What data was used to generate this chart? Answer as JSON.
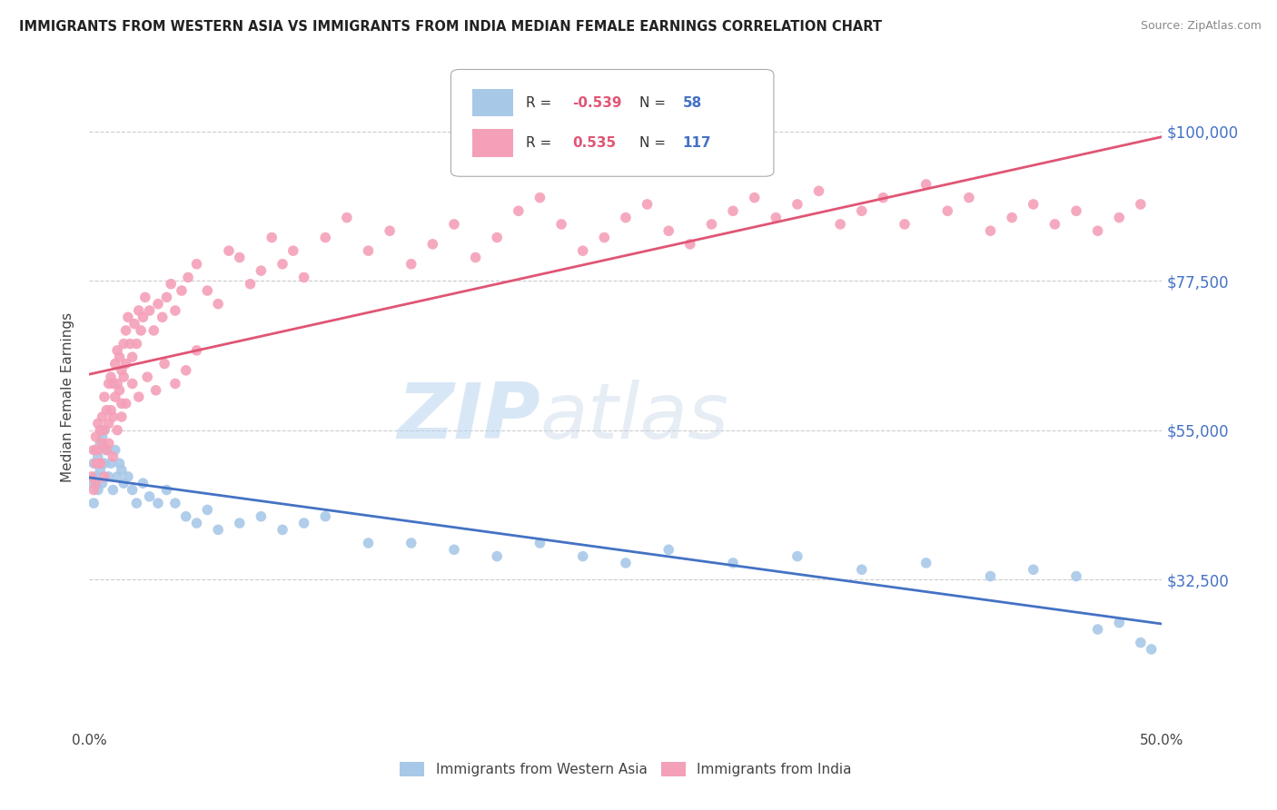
{
  "title": "IMMIGRANTS FROM WESTERN ASIA VS IMMIGRANTS FROM INDIA MEDIAN FEMALE EARNINGS CORRELATION CHART",
  "source": "Source: ZipAtlas.com",
  "ylabel": "Median Female Earnings",
  "xlim": [
    0.0,
    0.5
  ],
  "ylim": [
    10000,
    110000
  ],
  "yticks": [
    32500,
    55000,
    77500,
    100000
  ],
  "ytick_labels": [
    "$32,500",
    "$55,000",
    "$77,500",
    "$100,000"
  ],
  "xtick_labels": [
    "0.0%",
    "50.0%"
  ],
  "xtick_positions": [
    0.0,
    0.5
  ],
  "bg_color": "#ffffff",
  "grid_color": "#cccccc",
  "watermark": "ZIPatlas",
  "series_blue": {
    "name": "Immigrants from Western Asia",
    "R": -0.539,
    "N": 58,
    "dot_color": "#a8c8e8",
    "line_color": "#4472c4",
    "x": [
      0.001,
      0.002,
      0.002,
      0.003,
      0.003,
      0.004,
      0.004,
      0.005,
      0.005,
      0.006,
      0.006,
      0.007,
      0.007,
      0.008,
      0.009,
      0.01,
      0.011,
      0.012,
      0.013,
      0.014,
      0.015,
      0.016,
      0.018,
      0.02,
      0.022,
      0.025,
      0.028,
      0.032,
      0.036,
      0.04,
      0.045,
      0.05,
      0.055,
      0.06,
      0.07,
      0.08,
      0.09,
      0.1,
      0.11,
      0.13,
      0.15,
      0.17,
      0.19,
      0.21,
      0.23,
      0.25,
      0.27,
      0.3,
      0.33,
      0.36,
      0.39,
      0.42,
      0.44,
      0.46,
      0.47,
      0.48,
      0.49,
      0.495
    ],
    "y": [
      47000,
      50000,
      44000,
      52000,
      48000,
      51000,
      46000,
      53000,
      49000,
      54000,
      47000,
      55000,
      50000,
      52000,
      48000,
      50000,
      46000,
      52000,
      48000,
      50000,
      49000,
      47000,
      48000,
      46000,
      44000,
      47000,
      45000,
      44000,
      46000,
      44000,
      42000,
      41000,
      43000,
      40000,
      41000,
      42000,
      40000,
      41000,
      42000,
      38000,
      38000,
      37000,
      36000,
      38000,
      36000,
      35000,
      37000,
      35000,
      36000,
      34000,
      35000,
      33000,
      34000,
      33000,
      25000,
      26000,
      23000,
      22000
    ]
  },
  "series_pink": {
    "name": "Immigrants from India",
    "R": 0.535,
    "N": 117,
    "dot_color": "#f4a0b8",
    "line_color": "#e05575",
    "x": [
      0.001,
      0.002,
      0.002,
      0.003,
      0.003,
      0.004,
      0.004,
      0.005,
      0.005,
      0.006,
      0.006,
      0.007,
      0.007,
      0.008,
      0.008,
      0.009,
      0.009,
      0.01,
      0.01,
      0.011,
      0.011,
      0.012,
      0.012,
      0.013,
      0.013,
      0.014,
      0.014,
      0.015,
      0.015,
      0.016,
      0.016,
      0.017,
      0.017,
      0.018,
      0.019,
      0.02,
      0.021,
      0.022,
      0.023,
      0.024,
      0.025,
      0.026,
      0.028,
      0.03,
      0.032,
      0.034,
      0.036,
      0.038,
      0.04,
      0.043,
      0.046,
      0.05,
      0.055,
      0.06,
      0.065,
      0.07,
      0.075,
      0.08,
      0.085,
      0.09,
      0.095,
      0.1,
      0.11,
      0.12,
      0.13,
      0.14,
      0.15,
      0.16,
      0.17,
      0.18,
      0.19,
      0.2,
      0.21,
      0.22,
      0.23,
      0.24,
      0.25,
      0.26,
      0.27,
      0.28,
      0.29,
      0.3,
      0.31,
      0.32,
      0.33,
      0.34,
      0.35,
      0.36,
      0.37,
      0.38,
      0.39,
      0.4,
      0.41,
      0.42,
      0.43,
      0.44,
      0.45,
      0.46,
      0.47,
      0.48,
      0.49,
      0.003,
      0.005,
      0.007,
      0.009,
      0.011,
      0.013,
      0.015,
      0.017,
      0.02,
      0.023,
      0.027,
      0.031,
      0.035,
      0.04,
      0.045,
      0.05
    ],
    "y": [
      48000,
      52000,
      46000,
      54000,
      50000,
      56000,
      52000,
      55000,
      50000,
      57000,
      53000,
      60000,
      55000,
      58000,
      52000,
      62000,
      56000,
      63000,
      58000,
      62000,
      57000,
      65000,
      60000,
      67000,
      62000,
      66000,
      61000,
      64000,
      59000,
      68000,
      63000,
      70000,
      65000,
      72000,
      68000,
      66000,
      71000,
      68000,
      73000,
      70000,
      72000,
      75000,
      73000,
      70000,
      74000,
      72000,
      75000,
      77000,
      73000,
      76000,
      78000,
      80000,
      76000,
      74000,
      82000,
      81000,
      77000,
      79000,
      84000,
      80000,
      82000,
      78000,
      84000,
      87000,
      82000,
      85000,
      80000,
      83000,
      86000,
      81000,
      84000,
      88000,
      90000,
      86000,
      82000,
      84000,
      87000,
      89000,
      85000,
      83000,
      86000,
      88000,
      90000,
      87000,
      89000,
      91000,
      86000,
      88000,
      90000,
      86000,
      92000,
      88000,
      90000,
      85000,
      87000,
      89000,
      86000,
      88000,
      85000,
      87000,
      89000,
      47000,
      50000,
      48000,
      53000,
      51000,
      55000,
      57000,
      59000,
      62000,
      60000,
      63000,
      61000,
      65000,
      62000,
      64000,
      67000
    ]
  }
}
